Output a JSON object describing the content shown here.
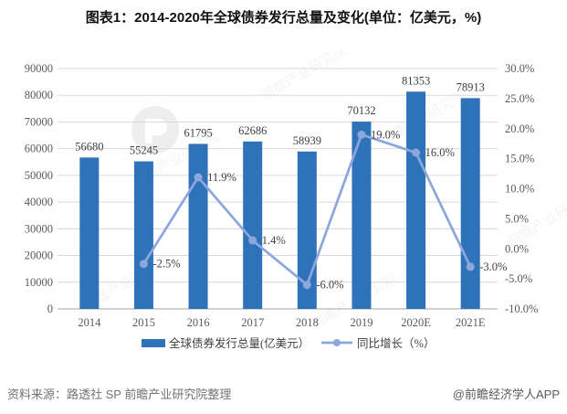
{
  "title": "图表1：2014-2020年全球债券发行总量及变化(单位：亿美元，%)",
  "watermark": "前瞻产业研究院",
  "footer": {
    "source": "资料来源：路透社 SP 前瞻产业研究院整理",
    "brand": "@前瞻经济学人APP"
  },
  "colors": {
    "bar": "#2E73B9",
    "line": "#8DA6DB",
    "grid": "#D9D9D9",
    "axis_line": "#A6A6A6",
    "axis_text": "#595959",
    "label_text": "#3F3F3F"
  },
  "chart_data": {
    "type": "bar+line combo",
    "categories": [
      "2014",
      "2015",
      "2016",
      "2017",
      "2018",
      "2019",
      "2020E",
      "2021E"
    ],
    "series": [
      {
        "name": "全球债券发行总量(亿美元）",
        "type": "bar",
        "axis": "left",
        "values": [
          56680,
          55245,
          61795,
          62686,
          58939,
          70132,
          81353,
          78913
        ]
      },
      {
        "name": "同比增长（%）",
        "type": "line",
        "axis": "right",
        "values": [
          null,
          -2.5,
          11.9,
          1.4,
          -6.0,
          19.0,
          16.0,
          -3.0
        ],
        "labels": [
          "",
          "-2.5%",
          "11.9%",
          "1.4%",
          "-6.0%",
          "19.0%",
          "16.0%",
          "-3.0%"
        ]
      }
    ],
    "left_axis": {
      "min": 0,
      "max": 90000,
      "step": 10000
    },
    "right_axis": {
      "min": -10,
      "max": 30,
      "step": 5,
      "format": "one-decimal-percent"
    },
    "grid": true,
    "legend_position": "bottom"
  }
}
